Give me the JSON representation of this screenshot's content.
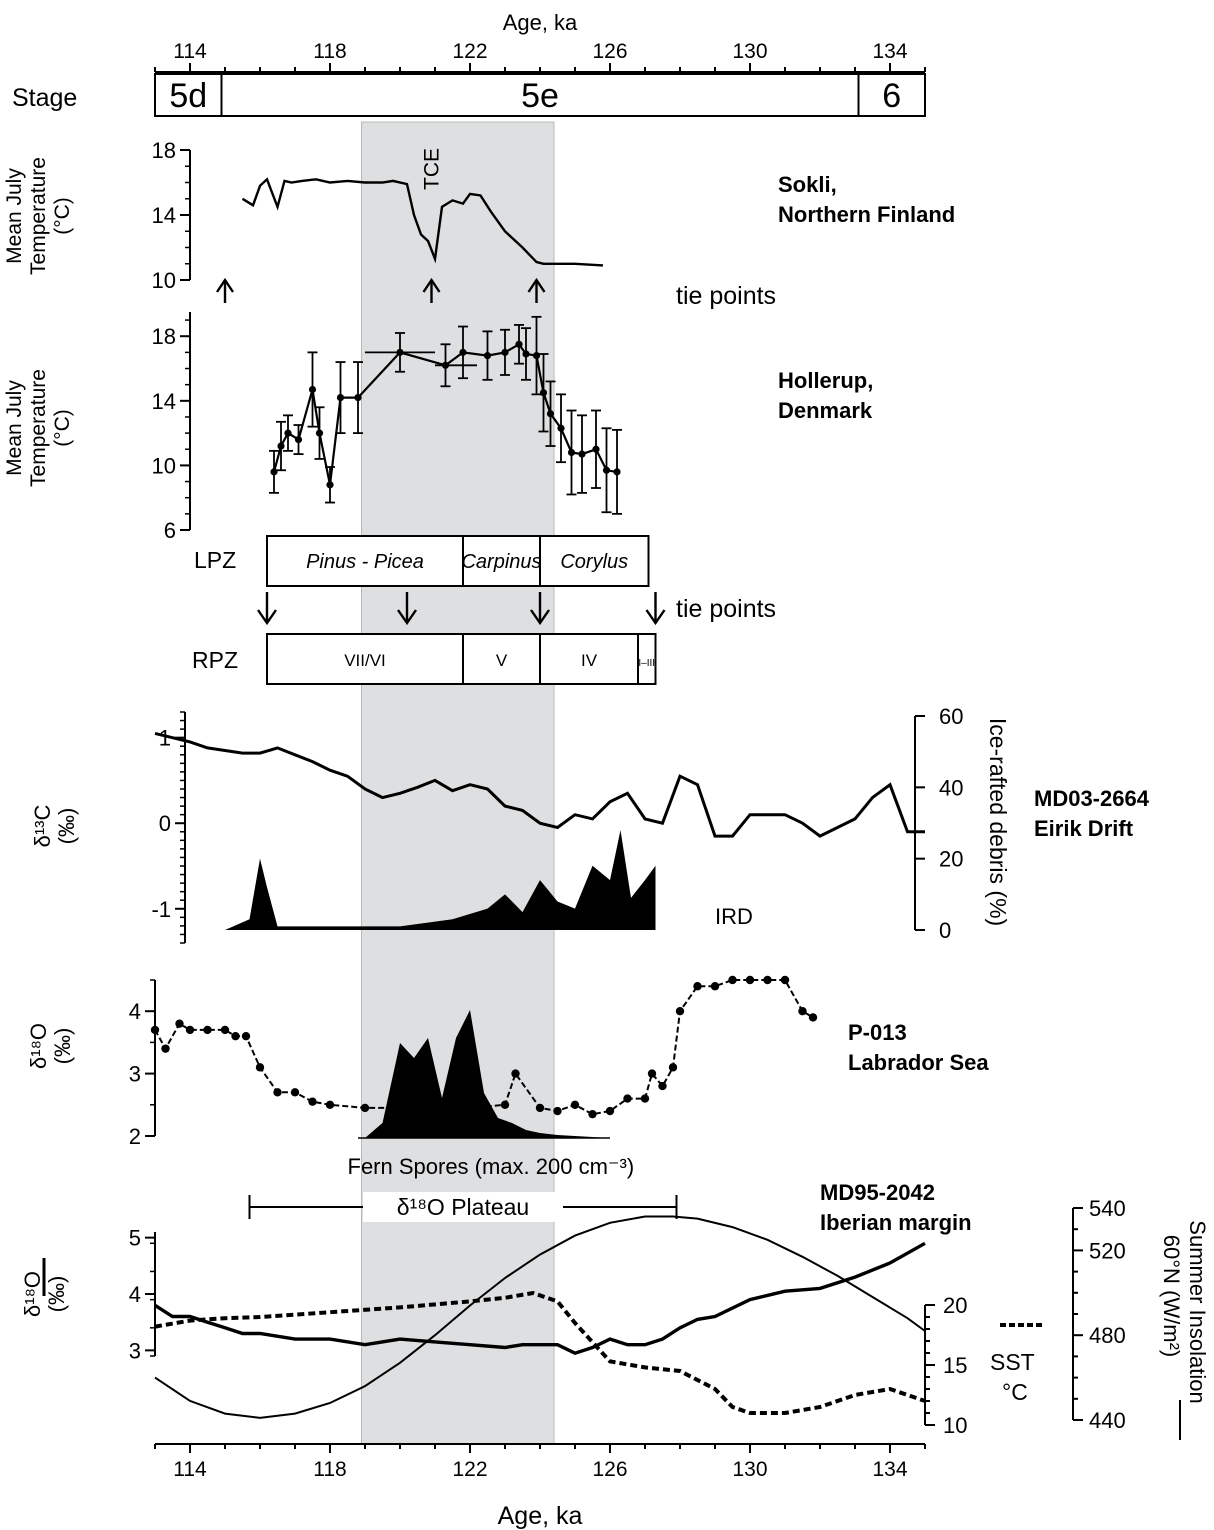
{
  "chart_data": {
    "type": "line",
    "top_axis": {
      "label": "Age, ka",
      "ticks": [
        "114",
        "118",
        "122",
        "126",
        "130",
        "134"
      ],
      "xlim": [
        113,
        135
      ]
    },
    "bottom_axis": {
      "label": "Age, ka",
      "ticks": [
        "114",
        "118",
        "122",
        "126",
        "130",
        "134"
      ],
      "xlim": [
        113,
        135
      ]
    },
    "stage_row": {
      "label": "Stage",
      "stages": [
        {
          "name": "5d",
          "from": 113,
          "to": 114.9
        },
        {
          "name": "5e",
          "from": 114.9,
          "to": 133.1
        },
        {
          "name": "6",
          "from": 133.1,
          "to": 135
        }
      ]
    },
    "shading": {
      "from": 118.9,
      "to": 124.4
    },
    "tie_points_label": "tie points",
    "tie_points_upper": [
      115.0,
      120.9,
      123.9
    ],
    "tie_points_lower": [
      116.2,
      120.2,
      124.0,
      127.3
    ],
    "panels": [
      {
        "site": [
          "Sokli,",
          "Northern Finland"
        ],
        "ylabel": [
          "Mean July",
          "Temperature",
          "(°C)"
        ],
        "ticks": [
          "10",
          "14",
          "18"
        ],
        "ylim": [
          10,
          18
        ],
        "annotation": "TCE",
        "x": [
          115.5,
          115.8,
          116.0,
          116.2,
          116.5,
          116.7,
          116.9,
          117.2,
          117.6,
          118.0,
          118.5,
          119.0,
          119.5,
          119.8,
          120.2,
          120.4,
          120.6,
          120.8,
          121.0,
          121.2,
          121.5,
          121.8,
          122.0,
          122.3,
          122.6,
          123.0,
          123.5,
          123.9,
          124.1,
          124.5,
          125.0,
          125.8
        ],
        "y": [
          15.0,
          14.6,
          15.8,
          16.2,
          14.5,
          16.1,
          16.0,
          16.1,
          16.2,
          16.0,
          16.1,
          16.0,
          16.0,
          16.1,
          15.9,
          14.0,
          12.8,
          12.4,
          11.3,
          14.5,
          14.9,
          14.7,
          15.3,
          15.2,
          14.2,
          13.0,
          12.0,
          11.1,
          11.0,
          11.0,
          11.0,
          10.9
        ]
      },
      {
        "site": [
          "Hollerup,",
          "Denmark"
        ],
        "ylabel": [
          "Mean July",
          "Temperature",
          "(°C)"
        ],
        "ticks": [
          "6",
          "10",
          "14",
          "18"
        ],
        "ylim": [
          6,
          19.5
        ],
        "x": [
          116.4,
          116.6,
          116.8,
          117.1,
          117.5,
          117.7,
          118.0,
          118.3,
          118.8,
          120.0,
          121.3,
          121.8,
          122.5,
          123.0,
          123.4,
          123.6,
          123.9,
          124.1,
          124.3,
          124.6,
          124.9,
          125.2,
          125.6,
          125.9,
          126.2
        ],
        "y": [
          9.6,
          11.2,
          12.0,
          11.6,
          14.7,
          12.0,
          8.8,
          14.2,
          14.2,
          17.0,
          16.2,
          17.0,
          16.8,
          17.0,
          17.5,
          16.9,
          16.8,
          14.5,
          13.2,
          12.3,
          10.8,
          10.7,
          11.0,
          9.7,
          9.6
        ],
        "err": [
          1.3,
          1.5,
          1.1,
          0.9,
          2.3,
          1.6,
          1.1,
          2.2,
          2.2,
          1.2,
          1.3,
          1.6,
          1.5,
          1.4,
          1.2,
          1.6,
          2.4,
          2.4,
          2.0,
          2.1,
          2.6,
          2.4,
          2.4,
          2.6,
          2.6
        ]
      },
      {
        "site": [
          "MD03-2664",
          "Eirik Drift"
        ],
        "ylabel": [
          "δ¹³C",
          "(‰)"
        ],
        "ticks": [
          "-1",
          "0",
          "1"
        ],
        "ylim": [
          -1.4,
          1.3
        ],
        "right_axis": {
          "label": "Ice-rafted debris (%)",
          "ticks": [
            "0",
            "20",
            "40",
            "60"
          ],
          "ylim": [
            0,
            60
          ]
        },
        "annotation": "IRD",
        "x": [
          113.0,
          113.5,
          114.0,
          114.5,
          115.0,
          115.5,
          116.0,
          116.5,
          117.0,
          117.5,
          118.0,
          118.5,
          119.0,
          119.5,
          120.0,
          120.5,
          121.0,
          121.5,
          122.0,
          122.5,
          123.0,
          123.5,
          124.0,
          124.5,
          125.0,
          125.5,
          126.0,
          126.5,
          127.0,
          127.5,
          128.0,
          128.5,
          129.0,
          129.5,
          130.0,
          130.5,
          131.0,
          131.5,
          132.0,
          132.5,
          133.0,
          133.5,
          134.0,
          134.5,
          135.0
        ],
        "y": [
          1.05,
          1.0,
          0.95,
          0.88,
          0.85,
          0.82,
          0.82,
          0.88,
          0.8,
          0.72,
          0.62,
          0.55,
          0.4,
          0.3,
          0.35,
          0.42,
          0.5,
          0.38,
          0.45,
          0.4,
          0.2,
          0.15,
          0.0,
          -0.05,
          0.1,
          0.05,
          0.25,
          0.35,
          0.05,
          0.0,
          0.55,
          0.45,
          -0.15,
          -0.15,
          0.1,
          0.1,
          0.1,
          0.0,
          -0.15,
          -0.05,
          0.05,
          0.3,
          0.45,
          -0.1,
          -0.1
        ],
        "ird": {
          "x": [
            115.0,
            115.7,
            116.0,
            116.2,
            116.5,
            118.0,
            120.0,
            121.5,
            122.5,
            123.0,
            123.5,
            124.0,
            124.5,
            125.0,
            125.5,
            126.0,
            126.3,
            126.6,
            127.0,
            127.3
          ],
          "y": [
            0,
            3,
            20,
            12,
            1,
            1,
            1,
            3,
            6,
            10,
            5,
            14,
            8,
            6,
            18,
            14,
            28,
            9,
            14,
            18
          ]
        }
      },
      {
        "site": [
          "P-013",
          "Labrador Sea"
        ],
        "ylabel": [
          "δ¹⁸O",
          "(‰)"
        ],
        "ticks": [
          "2",
          "3",
          "4"
        ],
        "ylim": [
          2,
          4.5
        ],
        "annotation": "Fern Spores (max. 200 cm⁻³)",
        "x": [
          113.0,
          113.3,
          113.7,
          114.0,
          114.5,
          115.0,
          115.3,
          115.6,
          116.0,
          116.5,
          117.0,
          117.5,
          118.0,
          119.0,
          120.0,
          121.0,
          122.0,
          123.0,
          123.3,
          124.0,
          124.5,
          125.0,
          125.5,
          126.0,
          126.5,
          127.0,
          127.2,
          127.5,
          127.8,
          128.0,
          128.5,
          129.0,
          129.5,
          130.0,
          130.5,
          131.0,
          131.5,
          131.8
        ],
        "y": [
          3.7,
          3.4,
          3.8,
          3.7,
          3.7,
          3.7,
          3.6,
          3.6,
          3.1,
          2.7,
          2.7,
          2.55,
          2.5,
          2.45,
          2.45,
          2.4,
          2.45,
          2.5,
          3.0,
          2.45,
          2.4,
          2.5,
          2.35,
          2.4,
          2.6,
          2.6,
          3.0,
          2.8,
          3.1,
          4.0,
          4.4,
          4.4,
          4.5,
          4.5,
          4.5,
          4.5,
          4.0,
          3.9
        ],
        "spores": {
          "x": [
            119.0,
            119.5,
            120.0,
            120.4,
            120.8,
            121.2,
            121.6,
            122.0,
            122.4,
            122.8,
            123.2,
            123.6,
            124.0,
            124.5,
            125.5,
            126.0
          ],
          "y": [
            0,
            15,
            95,
            80,
            100,
            40,
            100,
            128,
            45,
            20,
            15,
            8,
            5,
            3,
            1,
            0
          ]
        }
      },
      {
        "site": [
          "MD95-2042",
          "Iberian margin"
        ],
        "ylabel": [
          "δ¹⁸O",
          "(‰)"
        ],
        "ticks": [
          "3",
          "4",
          "5"
        ],
        "ylim": [
          2.9,
          5.1
        ],
        "plateau": {
          "label": "δ¹⁸O Plateau",
          "from": 115.7,
          "to": 127.9
        },
        "right_axis_sst": {
          "label": [
            "SST",
            "°C"
          ],
          "ticks": [
            "10",
            "15",
            "20"
          ],
          "ylim": [
            10,
            20
          ]
        },
        "right_axis_ins": {
          "label": [
            "Summer Insolation",
            "60°N (W/m²)"
          ],
          "ticks": [
            "440",
            "480",
            "520",
            "540"
          ],
          "ylim": [
            440,
            540
          ]
        },
        "d18o": {
          "x": [
            113.0,
            113.5,
            114.0,
            114.5,
            115.0,
            115.5,
            116.0,
            117.0,
            118.0,
            119.0,
            120.0,
            121.0,
            122.0,
            123.0,
            123.5,
            124.0,
            124.5,
            125.0,
            125.5,
            126.0,
            126.5,
            127.0,
            127.5,
            128.0,
            128.5,
            129.0,
            130.0,
            131.0,
            132.0,
            133.0,
            134.0,
            135.0
          ],
          "y": [
            3.8,
            3.6,
            3.6,
            3.5,
            3.4,
            3.3,
            3.3,
            3.2,
            3.2,
            3.1,
            3.2,
            3.15,
            3.1,
            3.05,
            3.1,
            3.1,
            3.1,
            2.95,
            3.05,
            3.2,
            3.1,
            3.1,
            3.2,
            3.4,
            3.55,
            3.6,
            3.9,
            4.05,
            4.1,
            4.3,
            4.55,
            4.9
          ]
        },
        "sst": {
          "x": [
            113.0,
            114.0,
            115.0,
            116.0,
            118.0,
            120.0,
            122.0,
            123.0,
            123.8,
            124.5,
            125.0,
            126.0,
            127.0,
            128.0,
            129.0,
            129.5,
            130.0,
            131.0,
            132.0,
            133.0,
            134.0,
            135.0
          ],
          "y": [
            18.2,
            18.7,
            18.9,
            19.0,
            19.4,
            19.8,
            20.3,
            20.6,
            21.0,
            20.3,
            18.5,
            15.3,
            14.8,
            14.5,
            13.0,
            11.5,
            11.0,
            11.0,
            11.5,
            12.5,
            13.0,
            12.0
          ]
        },
        "insolation": {
          "x": [
            113.0,
            114.0,
            115.0,
            116.0,
            117.0,
            118.0,
            119.0,
            120.0,
            121.0,
            122.0,
            123.0,
            124.0,
            125.0,
            126.0,
            127.0,
            127.8,
            128.5,
            129.5,
            130.5,
            131.5,
            132.5,
            133.5,
            134.5,
            135.0
          ],
          "y": [
            460,
            449,
            443,
            441,
            443,
            448,
            456,
            467,
            480,
            494,
            507,
            518,
            527,
            533,
            536,
            536,
            535,
            531,
            525,
            517,
            508,
            498,
            488,
            482
          ]
        }
      }
    ],
    "lpz": {
      "label": "LPZ",
      "zones": [
        {
          "name": "Pinus - Picea",
          "from": 116.2,
          "to": 121.8
        },
        {
          "name": "Carpinus",
          "from": 121.8,
          "to": 124.0
        },
        {
          "name": "Corylus",
          "from": 124.0,
          "to": 127.1
        }
      ]
    },
    "rpz": {
      "label": "RPZ",
      "zones": [
        {
          "name": "VII/VI",
          "from": 116.2,
          "to": 121.8
        },
        {
          "name": "V",
          "from": 121.8,
          "to": 124.0
        },
        {
          "name": "IV",
          "from": 124.0,
          "to": 126.8
        },
        {
          "name": "I–III",
          "from": 126.8,
          "to": 127.3
        }
      ]
    }
  }
}
